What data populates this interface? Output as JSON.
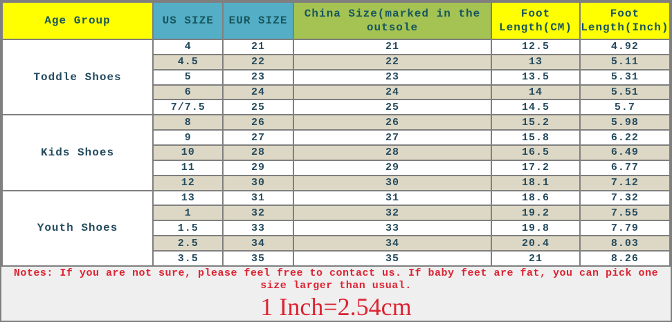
{
  "chart_data": {
    "type": "table",
    "columns": [
      "Age Group",
      "US SIZE",
      "EUR SIZE",
      "China Size(marked in the outsole",
      "Foot Length(CM)",
      "Foot Length(Inch)"
    ],
    "groups": [
      {
        "label": "Toddle Shoes",
        "rows": [
          {
            "us": "4",
            "eur": "21",
            "china": "21",
            "cm": "12.5",
            "inch": "4.92"
          },
          {
            "us": "4.5",
            "eur": "22",
            "china": "22",
            "cm": "13",
            "inch": "5.11"
          },
          {
            "us": "5",
            "eur": "23",
            "china": "23",
            "cm": "13.5",
            "inch": "5.31"
          },
          {
            "us": "6",
            "eur": "24",
            "china": "24",
            "cm": "14",
            "inch": "5.51"
          },
          {
            "us": "7/7.5",
            "eur": "25",
            "china": "25",
            "cm": "14.5",
            "inch": "5.7"
          }
        ]
      },
      {
        "label": "Kids Shoes",
        "rows": [
          {
            "us": "8",
            "eur": "26",
            "china": "26",
            "cm": "15.2",
            "inch": "5.98"
          },
          {
            "us": "9",
            "eur": "27",
            "china": "27",
            "cm": "15.8",
            "inch": "6.22"
          },
          {
            "us": "10",
            "eur": "28",
            "china": "28",
            "cm": "16.5",
            "inch": "6.49"
          },
          {
            "us": "11",
            "eur": "29",
            "china": "29",
            "cm": "17.2",
            "inch": "6.77"
          },
          {
            "us": "12",
            "eur": "30",
            "china": "30",
            "cm": "18.1",
            "inch": "7.12"
          }
        ]
      },
      {
        "label": "Youth Shoes",
        "rows": [
          {
            "us": "13",
            "eur": "31",
            "china": "31",
            "cm": "18.6",
            "inch": "7.32"
          },
          {
            "us": "1",
            "eur": "32",
            "china": "32",
            "cm": "19.2",
            "inch": "7.55"
          },
          {
            "us": "1.5",
            "eur": "33",
            "china": "33",
            "cm": "19.8",
            "inch": "7.79"
          },
          {
            "us": "2.5",
            "eur": "34",
            "china": "34",
            "cm": "20.4",
            "inch": "8.03"
          },
          {
            "us": "3.5",
            "eur": "35",
            "china": "35",
            "cm": "21",
            "inch": "8.26"
          }
        ]
      }
    ],
    "notes": "Notes: If you are not sure, please feel free to contact us. If baby feet are fat, you can pick one size larger than usual.",
    "conversion": "1 Inch=2.54cm"
  },
  "colors": {
    "header_yellow": "#ffff00",
    "header_teal": "#53aec6",
    "header_green": "#a4c353",
    "row_alt_tan": "#ddd8c5",
    "grid_gray": "#7f7f7f",
    "table_text": "#254b5e",
    "note_red": "#dc2433",
    "footer_bg": "#efefef"
  }
}
